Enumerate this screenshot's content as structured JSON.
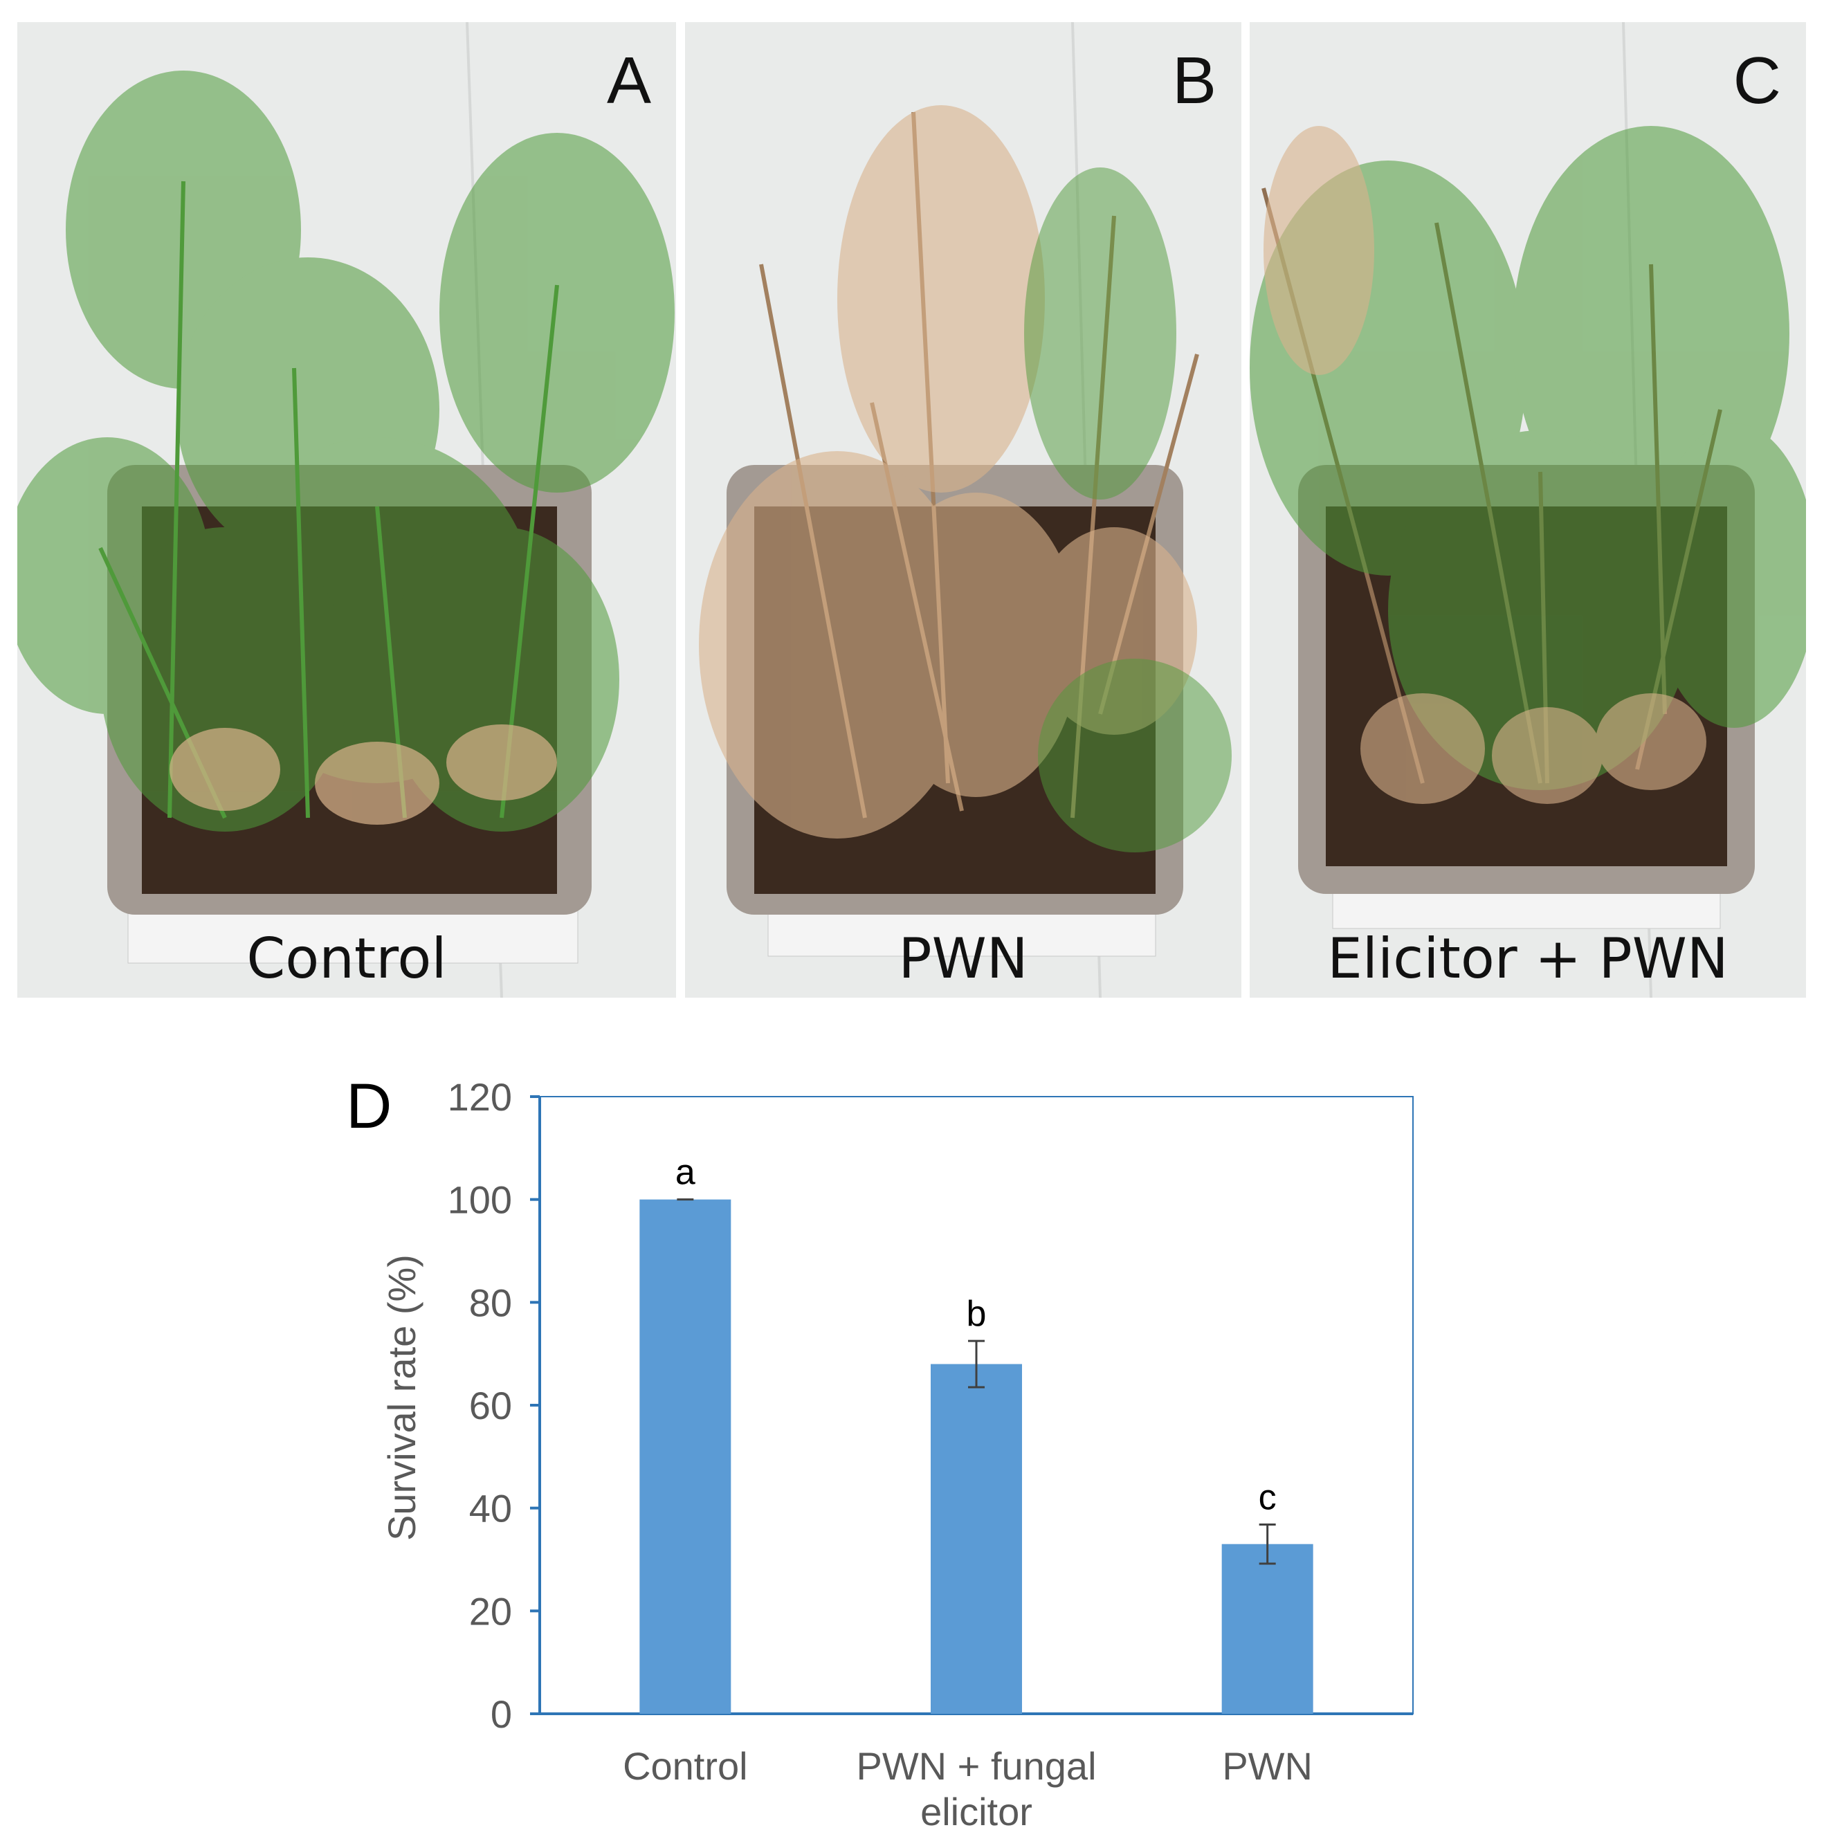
{
  "panels": [
    {
      "letter": "A",
      "caption": "Control"
    },
    {
      "letter": "B",
      "caption": "PWN"
    },
    {
      "letter": "C",
      "caption": "Elicitor + PWN"
    }
  ],
  "colors": {
    "bar": "#5b9bd5",
    "axis": "#2e75b6",
    "healthy_needle": "#4f9a3a",
    "dead_needle": "#d9b38c"
  },
  "chart_data": {
    "type": "bar",
    "panel_letter": "D",
    "categories": [
      "Control",
      "PWN + fungal elicitor",
      "PWN"
    ],
    "category_lines": [
      [
        "Control"
      ],
      [
        "PWN + fungal",
        "elicitor"
      ],
      [
        "PWN"
      ]
    ],
    "values": [
      100,
      68,
      33
    ],
    "errors": [
      0,
      4.5,
      3.8
    ],
    "significance": [
      "a",
      "b",
      "c"
    ],
    "ylabel": "Survival rate  (%)",
    "xlabel": "",
    "ylim": [
      0,
      120
    ],
    "yticks": [
      0,
      20,
      40,
      60,
      80,
      100,
      120
    ],
    "grid": false
  }
}
